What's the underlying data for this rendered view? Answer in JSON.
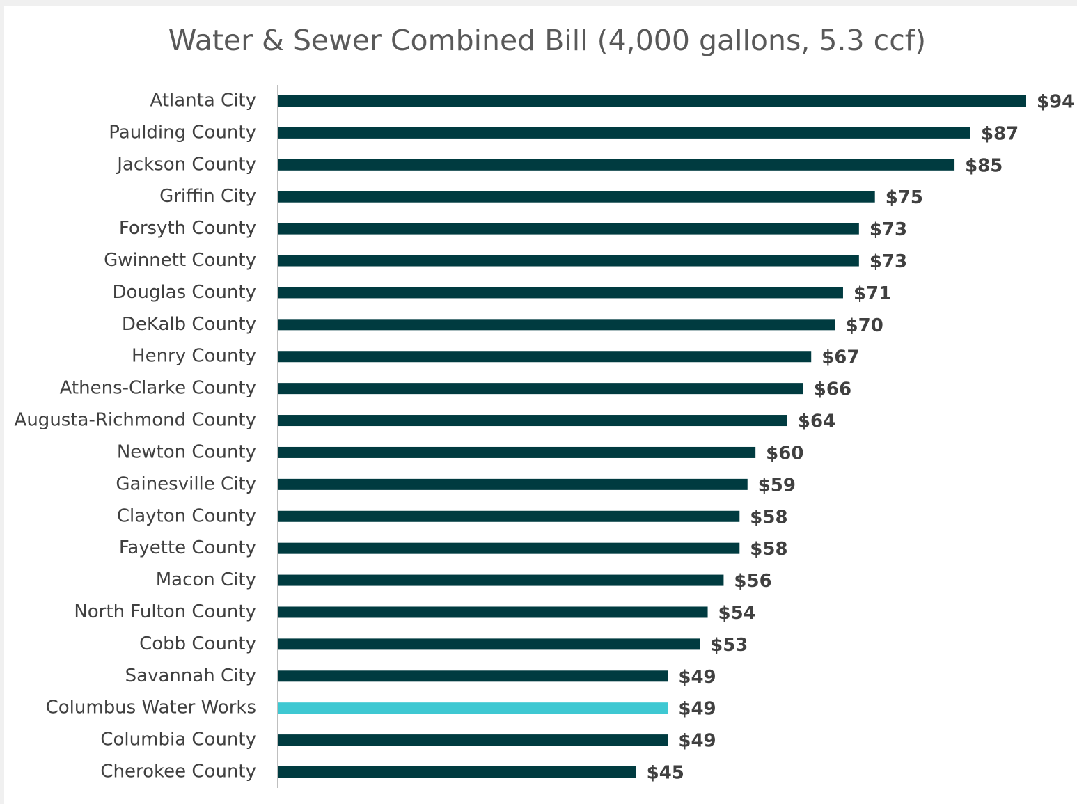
{
  "chart_data": {
    "type": "bar",
    "orientation": "horizontal",
    "title": "Water & Sewer Combined Bill (4,000 gallons, 5.3 ccf)",
    "categories": [
      "Atlanta City",
      "Paulding County",
      "Jackson County",
      "Griffin City",
      "Forsyth County",
      "Gwinnett County",
      "Douglas County",
      "DeKalb County",
      "Henry County",
      "Athens-Clarke County",
      "Augusta-Richmond County",
      "Newton County",
      "Gainesville City",
      "Clayton County",
      "Fayette County",
      "Macon City",
      "North Fulton County",
      "Cobb County",
      "Savannah City",
      "Columbus Water Works",
      "Columbia County",
      "Cherokee County"
    ],
    "values": [
      94,
      87,
      85,
      75,
      73,
      73,
      71,
      70,
      67,
      66,
      64,
      60,
      59,
      58,
      58,
      56,
      54,
      53,
      49,
      49,
      49,
      45
    ],
    "value_labels": [
      "$94",
      "$87",
      "$85",
      "$75",
      "$73",
      "$73",
      "$71",
      "$70",
      "$67",
      "$66",
      "$64",
      "$60",
      "$59",
      "$58",
      "$58",
      "$56",
      "$54",
      "$53",
      "$49",
      "$49",
      "$49",
      "$45"
    ],
    "colors": [
      "#003b40",
      "#003b40",
      "#003b40",
      "#003b40",
      "#003b40",
      "#003b40",
      "#003b40",
      "#003b40",
      "#003b40",
      "#003b40",
      "#003b40",
      "#003b40",
      "#003b40",
      "#003b40",
      "#003b40",
      "#003b40",
      "#003b40",
      "#003b40",
      "#003b40",
      "#3ec8d2",
      "#003b40",
      "#003b40"
    ]
  }
}
